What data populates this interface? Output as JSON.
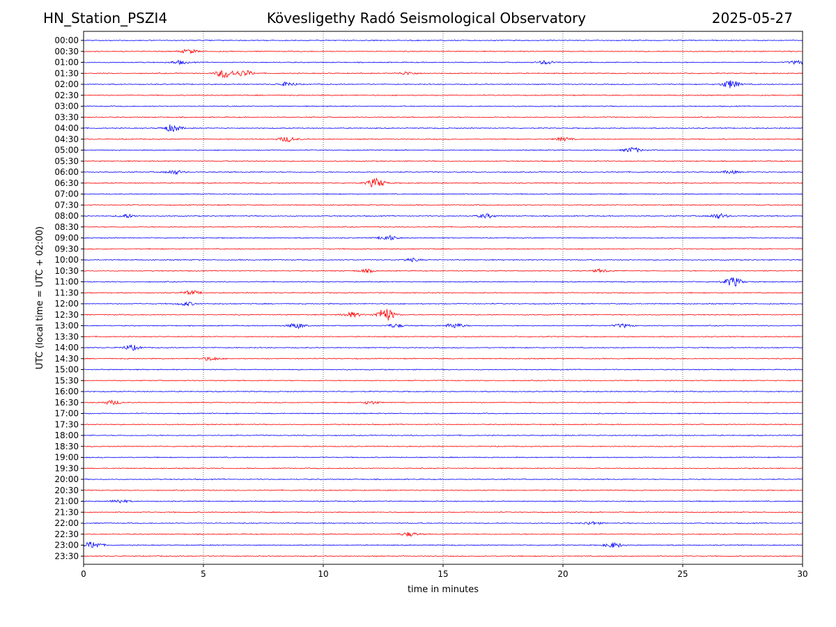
{
  "header": {
    "station": "HN_Station_PSZI4",
    "observatory": "Kövesligethy Radó Seismological Observatory",
    "date": "2025-05-27"
  },
  "chart_data": {
    "type": "line",
    "title": "Kövesligethy Radó Seismological Observatory",
    "xlabel": "time in minutes",
    "ylabel": "UTC (local time = UTC + 02:00)",
    "xlim": [
      0,
      30
    ],
    "x_ticks": [
      0,
      5,
      10,
      15,
      20,
      25,
      30
    ],
    "x_tick_labels": [
      "0",
      "5",
      "10",
      "15",
      "20",
      "25",
      "30"
    ],
    "grid": "vertical dotted lines at 5-minute intervals",
    "row_labels": [
      "00:00",
      "00:30",
      "01:00",
      "01:30",
      "02:00",
      "02:30",
      "03:00",
      "03:30",
      "04:00",
      "04:30",
      "05:00",
      "05:30",
      "06:00",
      "06:30",
      "07:00",
      "07:30",
      "08:00",
      "08:30",
      "09:00",
      "09:30",
      "10:00",
      "10:30",
      "11:00",
      "11:30",
      "12:00",
      "12:30",
      "13:00",
      "13:30",
      "14:00",
      "14:30",
      "15:00",
      "15:30",
      "16:00",
      "16:30",
      "17:00",
      "17:30",
      "18:00",
      "18:30",
      "19:00",
      "19:30",
      "20:00",
      "20:30",
      "21:00",
      "21:30",
      "22:00",
      "22:30",
      "23:00",
      "23:30"
    ],
    "series_colors": [
      "#0000ff",
      "#ff0000"
    ],
    "trace_color_rule": "alternating blue/red, starting blue at 00:00",
    "events": [
      {
        "row": 1,
        "minute": 4.4,
        "amp": 0.4
      },
      {
        "row": 2,
        "minute": 4.0,
        "amp": 0.35
      },
      {
        "row": 2,
        "minute": 19.3,
        "amp": 0.35
      },
      {
        "row": 2,
        "minute": 29.8,
        "amp": 0.35
      },
      {
        "row": 3,
        "minute": 5.9,
        "amp": 0.9
      },
      {
        "row": 3,
        "minute": 6.7,
        "amp": 0.6
      },
      {
        "row": 3,
        "minute": 13.5,
        "amp": 0.3
      },
      {
        "row": 4,
        "minute": 8.5,
        "amp": 0.4
      },
      {
        "row": 4,
        "minute": 27.0,
        "amp": 0.8
      },
      {
        "row": 8,
        "minute": 3.7,
        "amp": 0.7
      },
      {
        "row": 9,
        "minute": 8.5,
        "amp": 0.5
      },
      {
        "row": 9,
        "minute": 20.0,
        "amp": 0.35
      },
      {
        "row": 10,
        "minute": 22.9,
        "amp": 0.5
      },
      {
        "row": 12,
        "minute": 3.8,
        "amp": 0.4
      },
      {
        "row": 12,
        "minute": 27.0,
        "amp": 0.3
      },
      {
        "row": 13,
        "minute": 12.2,
        "amp": 0.9
      },
      {
        "row": 16,
        "minute": 1.8,
        "amp": 0.35
      },
      {
        "row": 16,
        "minute": 16.8,
        "amp": 0.4
      },
      {
        "row": 16,
        "minute": 26.5,
        "amp": 0.5
      },
      {
        "row": 18,
        "minute": 12.7,
        "amp": 0.5
      },
      {
        "row": 20,
        "minute": 13.7,
        "amp": 0.3
      },
      {
        "row": 21,
        "minute": 11.8,
        "amp": 0.3
      },
      {
        "row": 21,
        "minute": 21.6,
        "amp": 0.3
      },
      {
        "row": 22,
        "minute": 27.1,
        "amp": 0.9
      },
      {
        "row": 23,
        "minute": 4.5,
        "amp": 0.4
      },
      {
        "row": 24,
        "minute": 4.3,
        "amp": 0.35
      },
      {
        "row": 25,
        "minute": 12.6,
        "amp": 1.3
      },
      {
        "row": 25,
        "minute": 11.2,
        "amp": 0.5
      },
      {
        "row": 26,
        "minute": 8.9,
        "amp": 0.5
      },
      {
        "row": 26,
        "minute": 13.0,
        "amp": 0.35
      },
      {
        "row": 26,
        "minute": 15.5,
        "amp": 0.5
      },
      {
        "row": 26,
        "minute": 22.5,
        "amp": 0.35
      },
      {
        "row": 28,
        "minute": 2.0,
        "amp": 0.5
      },
      {
        "row": 29,
        "minute": 5.3,
        "amp": 0.35
      },
      {
        "row": 33,
        "minute": 1.2,
        "amp": 0.4
      },
      {
        "row": 33,
        "minute": 12.0,
        "amp": 0.3
      },
      {
        "row": 42,
        "minute": 1.5,
        "amp": 0.35
      },
      {
        "row": 44,
        "minute": 21.2,
        "amp": 0.3
      },
      {
        "row": 45,
        "minute": 13.6,
        "amp": 0.4
      },
      {
        "row": 46,
        "minute": 0.4,
        "amp": 0.7
      },
      {
        "row": 46,
        "minute": 22.1,
        "amp": 0.5
      }
    ]
  }
}
